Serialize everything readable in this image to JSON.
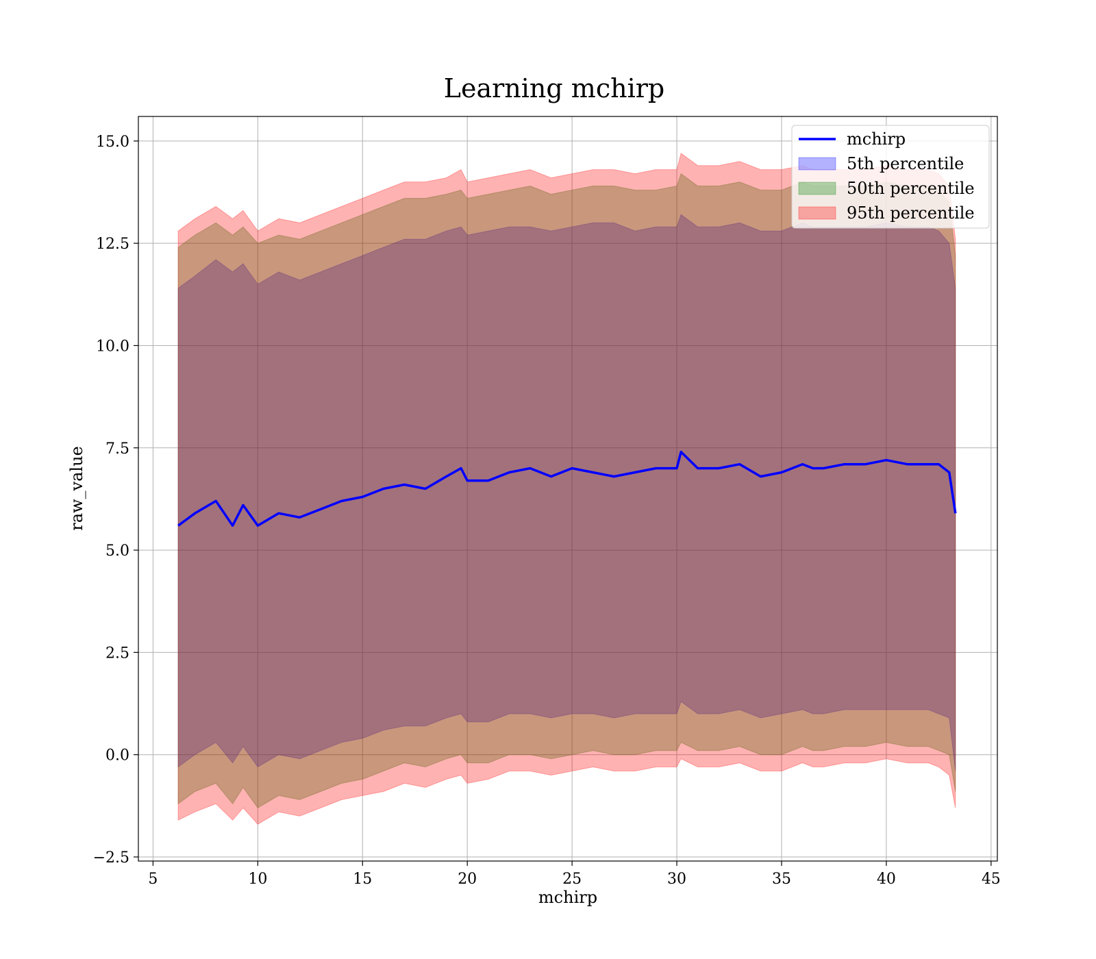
{
  "chart_data": {
    "type": "line",
    "title": "Learning mchirp",
    "xlabel": "mchirp",
    "ylabel": "raw_value",
    "xlim": [
      4.3,
      45.3
    ],
    "ylim": [
      -2.6,
      15.6
    ],
    "x_ticks": [
      5,
      10,
      15,
      20,
      25,
      30,
      35,
      40,
      45
    ],
    "y_ticks": [
      -2.5,
      0.0,
      2.5,
      5.0,
      7.5,
      10.0,
      12.5,
      15.0
    ],
    "x_tick_labels": [
      "5",
      "10",
      "15",
      "20",
      "25",
      "30",
      "35",
      "40",
      "45"
    ],
    "y_tick_labels": [
      "−2.5",
      "0.0",
      "2.5",
      "5.0",
      "7.5",
      "10.0",
      "12.5",
      "15.0"
    ],
    "grid": true,
    "legend_position": "top-right",
    "x": [
      6.2,
      7,
      8,
      8.8,
      9.3,
      10,
      11,
      12,
      13,
      14,
      15,
      16,
      17,
      18,
      19,
      19.7,
      20,
      21,
      22,
      23,
      24,
      25,
      26,
      27,
      28,
      29,
      30,
      30.2,
      31,
      32,
      33,
      34,
      35,
      36,
      36.5,
      37,
      38,
      39,
      40,
      41,
      42,
      42.5,
      43,
      43.3
    ],
    "series": [
      {
        "name": "mchirp",
        "kind": "line",
        "color": "#0000ff",
        "values": [
          5.6,
          5.9,
          6.2,
          5.6,
          6.1,
          5.6,
          5.9,
          5.8,
          6.0,
          6.2,
          6.3,
          6.5,
          6.6,
          6.5,
          6.8,
          7.0,
          6.7,
          6.7,
          6.9,
          7.0,
          6.8,
          7.0,
          6.9,
          6.8,
          6.9,
          7.0,
          7.0,
          7.4,
          7.0,
          7.0,
          7.1,
          6.8,
          6.9,
          7.1,
          7.0,
          7.0,
          7.1,
          7.1,
          7.2,
          7.1,
          7.1,
          7.1,
          6.9,
          5.9
        ]
      },
      {
        "name": "5th percentile",
        "kind": "band",
        "color": "#0000ff",
        "upper": [
          11.4,
          11.7,
          12.1,
          11.8,
          12.0,
          11.5,
          11.8,
          11.6,
          11.8,
          12.0,
          12.2,
          12.4,
          12.6,
          12.6,
          12.8,
          12.9,
          12.7,
          12.8,
          12.9,
          12.9,
          12.8,
          12.9,
          13.0,
          13.0,
          12.8,
          12.9,
          12.9,
          13.2,
          12.9,
          12.9,
          13.0,
          12.8,
          12.8,
          13.0,
          12.9,
          12.9,
          12.9,
          12.9,
          13.0,
          12.9,
          12.9,
          12.8,
          12.5,
          11.4
        ],
        "lower": [
          -0.3,
          0.0,
          0.3,
          -0.2,
          0.2,
          -0.3,
          0.0,
          -0.1,
          0.1,
          0.3,
          0.4,
          0.6,
          0.7,
          0.7,
          0.9,
          1.0,
          0.8,
          0.8,
          1.0,
          1.0,
          0.9,
          1.0,
          1.0,
          0.9,
          1.0,
          1.0,
          1.0,
          1.3,
          1.0,
          1.0,
          1.1,
          0.9,
          1.0,
          1.1,
          1.0,
          1.0,
          1.1,
          1.1,
          1.1,
          1.1,
          1.1,
          1.0,
          0.9,
          -0.4
        ]
      },
      {
        "name": "50th percentile",
        "kind": "band",
        "color": "#008000",
        "upper": [
          12.4,
          12.7,
          13.0,
          12.7,
          12.9,
          12.5,
          12.7,
          12.6,
          12.8,
          13.0,
          13.2,
          13.4,
          13.6,
          13.6,
          13.7,
          13.8,
          13.6,
          13.7,
          13.8,
          13.9,
          13.7,
          13.8,
          13.9,
          13.9,
          13.8,
          13.8,
          13.9,
          14.2,
          13.9,
          13.9,
          14.0,
          13.8,
          13.8,
          14.0,
          13.9,
          13.9,
          13.9,
          13.9,
          14.0,
          13.9,
          13.9,
          13.8,
          13.5,
          12.2
        ],
        "lower": [
          -1.2,
          -0.9,
          -0.7,
          -1.2,
          -0.8,
          -1.3,
          -1.0,
          -1.1,
          -0.9,
          -0.7,
          -0.6,
          -0.4,
          -0.2,
          -0.3,
          -0.1,
          0.0,
          -0.2,
          -0.2,
          0.0,
          0.0,
          -0.1,
          0.0,
          0.1,
          0.0,
          0.0,
          0.1,
          0.1,
          0.3,
          0.1,
          0.1,
          0.2,
          0.0,
          0.0,
          0.2,
          0.1,
          0.1,
          0.2,
          0.2,
          0.3,
          0.2,
          0.2,
          0.1,
          0.0,
          -0.9
        ]
      },
      {
        "name": "95th percentile",
        "kind": "band",
        "color": "#ff0000",
        "upper": [
          12.8,
          13.1,
          13.4,
          13.1,
          13.3,
          12.8,
          13.1,
          13.0,
          13.2,
          13.4,
          13.6,
          13.8,
          14.0,
          14.0,
          14.1,
          14.3,
          14.0,
          14.1,
          14.2,
          14.3,
          14.1,
          14.2,
          14.3,
          14.3,
          14.2,
          14.3,
          14.3,
          14.7,
          14.4,
          14.4,
          14.5,
          14.3,
          14.3,
          14.4,
          14.3,
          14.3,
          14.3,
          14.3,
          14.4,
          14.3,
          14.3,
          14.2,
          13.9,
          12.6
        ],
        "lower": [
          -1.6,
          -1.4,
          -1.2,
          -1.6,
          -1.3,
          -1.7,
          -1.4,
          -1.5,
          -1.3,
          -1.1,
          -1.0,
          -0.9,
          -0.7,
          -0.8,
          -0.6,
          -0.5,
          -0.7,
          -0.6,
          -0.4,
          -0.4,
          -0.5,
          -0.4,
          -0.3,
          -0.4,
          -0.4,
          -0.3,
          -0.3,
          -0.1,
          -0.3,
          -0.3,
          -0.2,
          -0.4,
          -0.4,
          -0.2,
          -0.3,
          -0.3,
          -0.2,
          -0.2,
          -0.1,
          -0.2,
          -0.2,
          -0.3,
          -0.5,
          -1.3
        ]
      }
    ]
  }
}
